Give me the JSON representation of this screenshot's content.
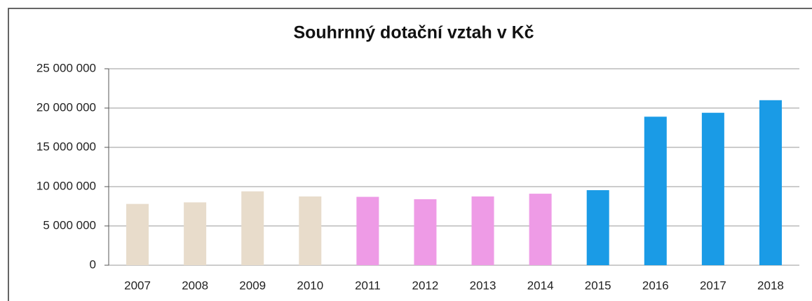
{
  "chart_data": {
    "type": "bar",
    "title": "Souhrnný dotační vztah v Kč",
    "categories": [
      "2007",
      "2008",
      "2009",
      "2010",
      "2011",
      "2012",
      "2013",
      "2014",
      "2015",
      "2016",
      "2017",
      "2018"
    ],
    "values": [
      7800000,
      8000000,
      9400000,
      8750000,
      8700000,
      8400000,
      8750000,
      9100000,
      9550000,
      18900000,
      19400000,
      21000000
    ],
    "colors": [
      "#e8dccb",
      "#e8dccb",
      "#e8dccb",
      "#e8dccb",
      "#ee9be6",
      "#ee9be6",
      "#ee9be6",
      "#ee9be6",
      "#1a9be6",
      "#1a9be6",
      "#1a9be6",
      "#1a9be6"
    ],
    "ylim": [
      0,
      25000000
    ],
    "yticks": [
      0,
      {
        "value": 5000000,
        "label": "5 000 000"
      },
      {
        "value": 10000000,
        "label": "10 000 000"
      },
      {
        "value": 15000000,
        "label": "15 000 000"
      },
      {
        "value": 20000000,
        "label": "20 000 000"
      },
      {
        "value": 25000000,
        "label": "25 000 000"
      }
    ],
    "grid": true
  }
}
